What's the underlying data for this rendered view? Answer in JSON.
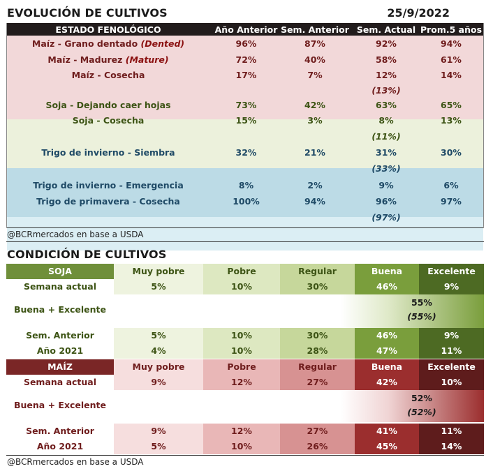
{
  "evolucion": {
    "title": "EVOLUCIÓN DE CULTIVOS",
    "date": "25/9/2022",
    "headers": [
      "ESTADO FENOLÓGICO",
      "Año Anterior",
      "Sem. Anterior",
      "Sem. Actual",
      "Prom.5 años"
    ],
    "rows": [
      {
        "name": "Maíz - Grano dentado",
        "note": "(Dented)",
        "ant": "96%",
        "sem_ant": "87%",
        "actual": "92%",
        "prom": "94%",
        "extra": ""
      },
      {
        "name": "Maíz - Madurez",
        "note": "(Mature)",
        "ant": "72%",
        "sem_ant": "40%",
        "actual": "58%",
        "prom": "61%",
        "extra": ""
      },
      {
        "name": "Maíz - Cosecha",
        "note": "",
        "ant": "17%",
        "sem_ant": "7%",
        "actual": "12%",
        "prom": "14%",
        "extra": "(13%)"
      },
      {
        "name": "Soja - Dejando caer hojas",
        "note": "",
        "ant": "73%",
        "sem_ant": "42%",
        "actual": "63%",
        "prom": "65%",
        "extra": ""
      },
      {
        "name": "Soja - Cosecha",
        "note": "",
        "ant": "15%",
        "sem_ant": "3%",
        "actual": "8%",
        "prom": "13%",
        "extra": "(11%)"
      },
      {
        "name": "Trigo de invierno - Siembra",
        "note": "",
        "ant": "32%",
        "sem_ant": "21%",
        "actual": "31%",
        "prom": "30%",
        "extra": "(33%)"
      },
      {
        "name": "Trigo de invierno - Emergencia",
        "note": "",
        "ant": "8%",
        "sem_ant": "2%",
        "actual": "9%",
        "prom": "6%",
        "extra": ""
      },
      {
        "name": "Trigo de primavera - Cosecha",
        "note": "",
        "ant": "100%",
        "sem_ant": "94%",
        "actual": "96%",
        "prom": "97%",
        "extra": "(97%)"
      }
    ],
    "source": "@BCRmercados en base a USDA"
  },
  "condicion": {
    "title": "CONDICIÓN DE CULTIVOS",
    "soja": {
      "label": "SOJA",
      "cols": [
        "Muy pobre",
        "Pobre",
        "Regular",
        "Buena",
        "Excelente"
      ],
      "actual_label": "Semana actual",
      "actual": [
        "5%",
        "10%",
        "30%",
        "46%",
        "9%"
      ],
      "be_label": "Buena + Excelente",
      "be_value": "55%",
      "be_prev": "(55%)",
      "ant_label": "Sem. Anterior",
      "ant": [
        "5%",
        "10%",
        "30%",
        "46%",
        "9%"
      ],
      "y_label": "Año 2021",
      "year": [
        "4%",
        "10%",
        "28%",
        "47%",
        "11%"
      ]
    },
    "maiz": {
      "label": "MAÍZ",
      "cols": [
        "Muy pobre",
        "Pobre",
        "Regular",
        "Buena",
        "Excelente"
      ],
      "actual_label": "Semana actual",
      "actual": [
        "9%",
        "12%",
        "27%",
        "42%",
        "10%"
      ],
      "be_label": "Buena + Excelente",
      "be_value": "52%",
      "be_prev": "(52%)",
      "ant_label": "Sem. Anterior",
      "ant": [
        "9%",
        "12%",
        "27%",
        "41%",
        "11%"
      ],
      "y_label": "Año 2021",
      "year": [
        "5%",
        "10%",
        "26%",
        "45%",
        "14%"
      ]
    },
    "source": "@BCRmercados en base a USDA"
  }
}
